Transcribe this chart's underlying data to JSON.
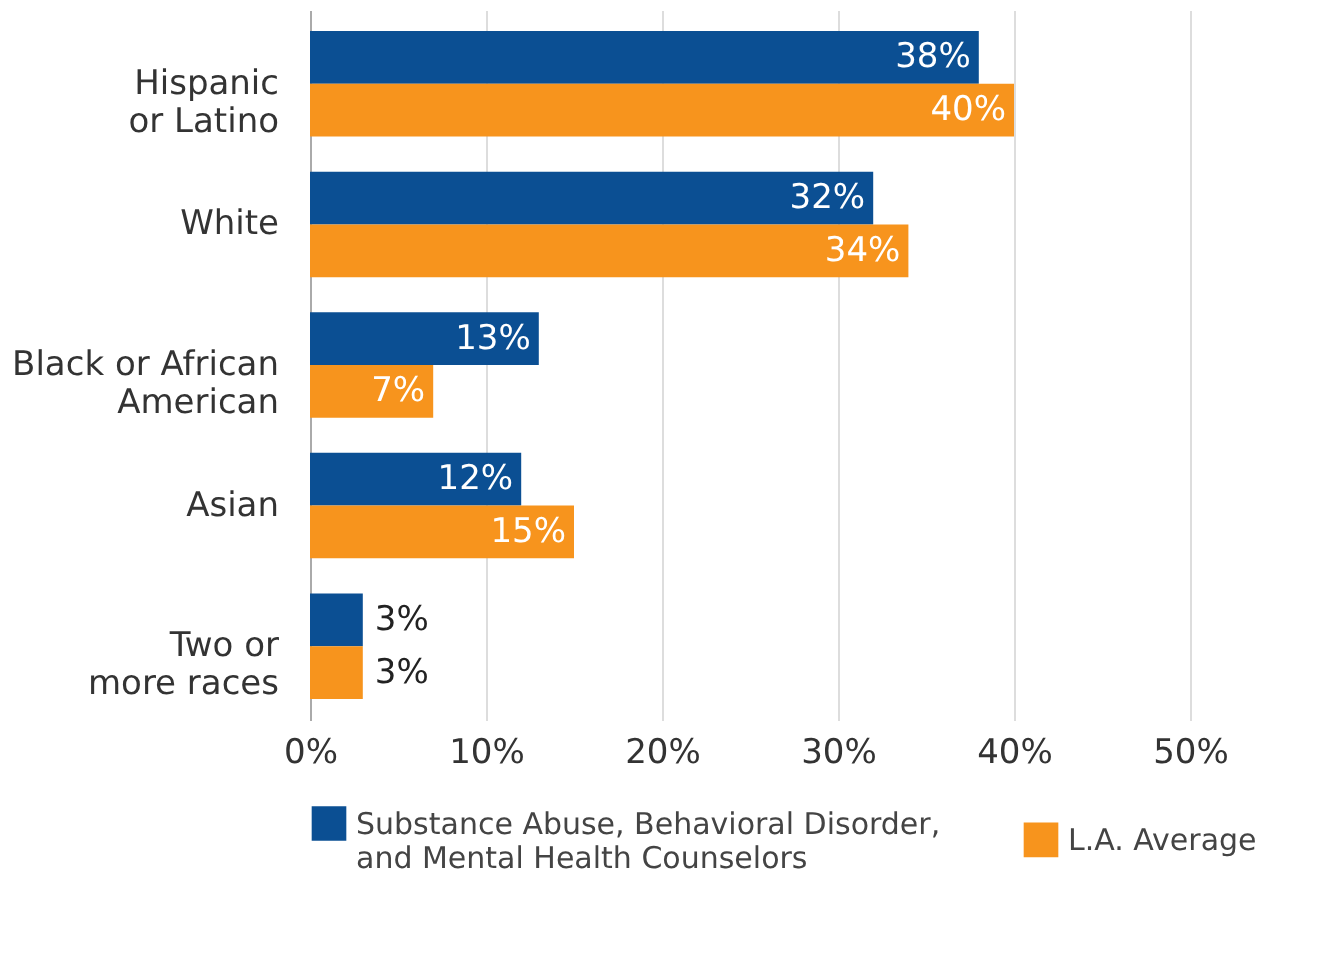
{
  "chart_data": {
    "type": "bar",
    "orientation": "horizontal",
    "categories": [
      "Hispanic\nor Latino",
      "White",
      "Black or African\nAmerican",
      "Asian",
      "Two or\nmore races"
    ],
    "series": [
      {
        "name": "Substance Abuse, Behavioral Disorder,\nand Mental Health Counselors",
        "color": "#0b4f93",
        "values": [
          38,
          32,
          13,
          12,
          3
        ],
        "value_labels": [
          "38%",
          "32%",
          "13%",
          "12%",
          "3%"
        ]
      },
      {
        "name": "L.A. Average",
        "color": "#f7941d",
        "values": [
          40,
          34,
          7,
          15,
          3
        ],
        "value_labels": [
          "40%",
          "34%",
          "7%",
          "15%",
          "3%"
        ]
      }
    ],
    "xlim": [
      0,
      50
    ],
    "xticks": [
      {
        "value": 0,
        "label": "0%"
      },
      {
        "value": 10,
        "label": "10%"
      },
      {
        "value": 20,
        "label": "20%"
      },
      {
        "value": 30,
        "label": "30%"
      },
      {
        "value": 40,
        "label": "40%"
      },
      {
        "value": 50,
        "label": "50%"
      }
    ],
    "grid": "x",
    "legend": "bottom"
  }
}
